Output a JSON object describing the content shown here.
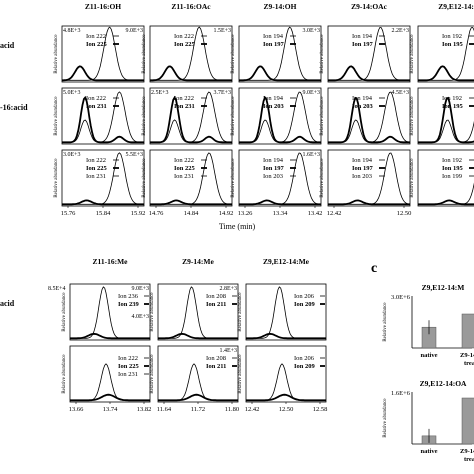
{
  "panel_c_label": "c",
  "top_grid": {
    "row_labels": [
      "acid",
      "-16:acid",
      ""
    ],
    "x_axis_label": "Time (min)",
    "ylabel": "Relative abundance",
    "columns": [
      {
        "title": "Z11-16:OH",
        "xticks": [
          "15.76",
          "15.84",
          "15.92"
        ],
        "scales": [
          "4.8E+3",
          "5.0E+3",
          "3.0E+3"
        ],
        "scales_right": [
          "9.0E+3",
          "",
          "5.5E+3"
        ],
        "legends": [
          [
            "Ion 222",
            "Ion 225"
          ],
          [
            "Ion 222",
            "Ion 231"
          ],
          [
            "Ion 222",
            "Ion 225",
            "Ion 231"
          ]
        ]
      },
      {
        "title": "Z11-16:OAc",
        "xticks": [
          "14.76",
          "14.84",
          "14.92"
        ],
        "scales": [
          "",
          "2.5E+3",
          ""
        ],
        "scales_right": [
          "1.5E+3",
          "3.7E+3",
          ""
        ],
        "legends": [
          [
            "Ion 222",
            "Ion 225"
          ],
          [
            "Ion 222",
            "Ion 231"
          ],
          [
            "Ion 222",
            "Ion 225",
            "Ion 231"
          ]
        ]
      },
      {
        "title": "Z9-14:OH",
        "xticks": [
          "13.26",
          "13.34",
          "13.42"
        ],
        "scales": [
          "",
          "",
          ""
        ],
        "scales_right": [
          "3.0E+3",
          "9.0E+3",
          "1.6E+3"
        ],
        "legends": [
          [
            "Ion 194",
            "Ion 197"
          ],
          [
            "Ion 194",
            "Ion 203"
          ],
          [
            "Ion 194",
            "Ion 197",
            "Ion 203"
          ]
        ]
      },
      {
        "title": "Z9-14:OAc",
        "xticks": [
          "12.42",
          "12.50"
        ],
        "scales": [
          "",
          "",
          ""
        ],
        "scales_right": [
          "2.2E+3",
          "4.5E+3",
          ""
        ],
        "legends": [
          [
            "Ion 194",
            "Ion 197"
          ],
          [
            "Ion 194",
            "Ion 203"
          ],
          [
            "Ion 194",
            "Ion 197",
            "Ion 203"
          ]
        ]
      },
      {
        "title": "Z9,E12-14:O",
        "xticks": [],
        "scales": [
          "",
          "",
          ""
        ],
        "scales_right": [
          "",
          "",
          ""
        ],
        "legends": [
          [
            "Ion 192",
            "Ion 195"
          ],
          [
            "Ion 192",
            "Ion 195"
          ],
          [
            "Ion 192",
            "Ion 195",
            "Ion 199"
          ]
        ]
      }
    ]
  },
  "bottom_grid": {
    "row_labels": [
      "acid",
      ""
    ],
    "ylabel": "Relative abundance",
    "columns": [
      {
        "title": "Z11-16:Me",
        "xticks": [
          "13.66",
          "13.74",
          "13.82"
        ],
        "scales": [
          "8.5E+4",
          ""
        ],
        "scales_right": [
          "9.0E+3",
          ""
        ],
        "inner_scale": "4.0E+3",
        "legends": [
          [
            "Ion 236",
            "Ion 239"
          ],
          [
            "Ion 222",
            "Ion 225",
            "Ion 231"
          ]
        ]
      },
      {
        "title": "Z9-14:Me",
        "xticks": [
          "11.64",
          "11.72",
          "11.80"
        ],
        "scales": [
          "",
          ""
        ],
        "scales_right": [
          "2.8E+3",
          "1.4E+3"
        ],
        "inner_scale": "",
        "legends": [
          [
            "Ion 208",
            "Ion 211"
          ],
          [
            "Ion 208",
            "Ion 211"
          ]
        ]
      },
      {
        "title": "Z9,E12-14:Me",
        "xticks": [
          "12.42",
          "12.50",
          "12.58"
        ],
        "scales": [
          "",
          ""
        ],
        "scales_right": [
          "",
          ""
        ],
        "inner_scale": "",
        "legends": [
          [
            "Ion 206",
            "Ion 209"
          ],
          [
            "Ion 206",
            "Ion 209"
          ]
        ]
      }
    ]
  },
  "chart_data": [
    {
      "type": "bar",
      "title": "Z9,E12-14:M",
      "categories": [
        "native"
      ],
      "values": [
        1.2
      ],
      "ylim": [
        0,
        3.0
      ],
      "ytick_top": "3.0E+6",
      "ylabel": "Relative abundance",
      "xtick_labels": [
        "native",
        "Z9-14:",
        "treat"
      ]
    },
    {
      "type": "bar",
      "title": "Z9,E12-14:OA",
      "categories": [
        "native"
      ],
      "values": [
        0.25
      ],
      "ylim": [
        0,
        1.6
      ],
      "ytick_top": "1.6E+6",
      "ylabel": "Relative abundance",
      "xtick_labels": [
        "native",
        "Z9-14:",
        "treat"
      ]
    }
  ]
}
